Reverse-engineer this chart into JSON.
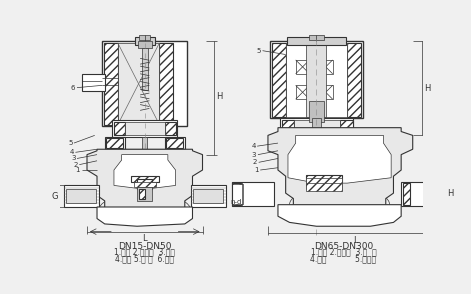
{
  "bg_color": "#f0f0f0",
  "line_color": "#555555",
  "dark_line": "#333333",
  "hatch_fill": "#ffffff",
  "left_label": "DN15-DN50",
  "left_parts": "1.阀体 2.阀塞组  3.弹簧",
  "left_parts2": "4.阀盖 5.铁 芯  6.线圈",
  "right_label": "DN65-DN300",
  "right_parts": "1.阀体 2.阀塞组  3.弹  簧",
  "right_parts2": "4.阀盖            5.电磁铁",
  "fig_width": 4.71,
  "fig_height": 2.94,
  "dpi": 100
}
